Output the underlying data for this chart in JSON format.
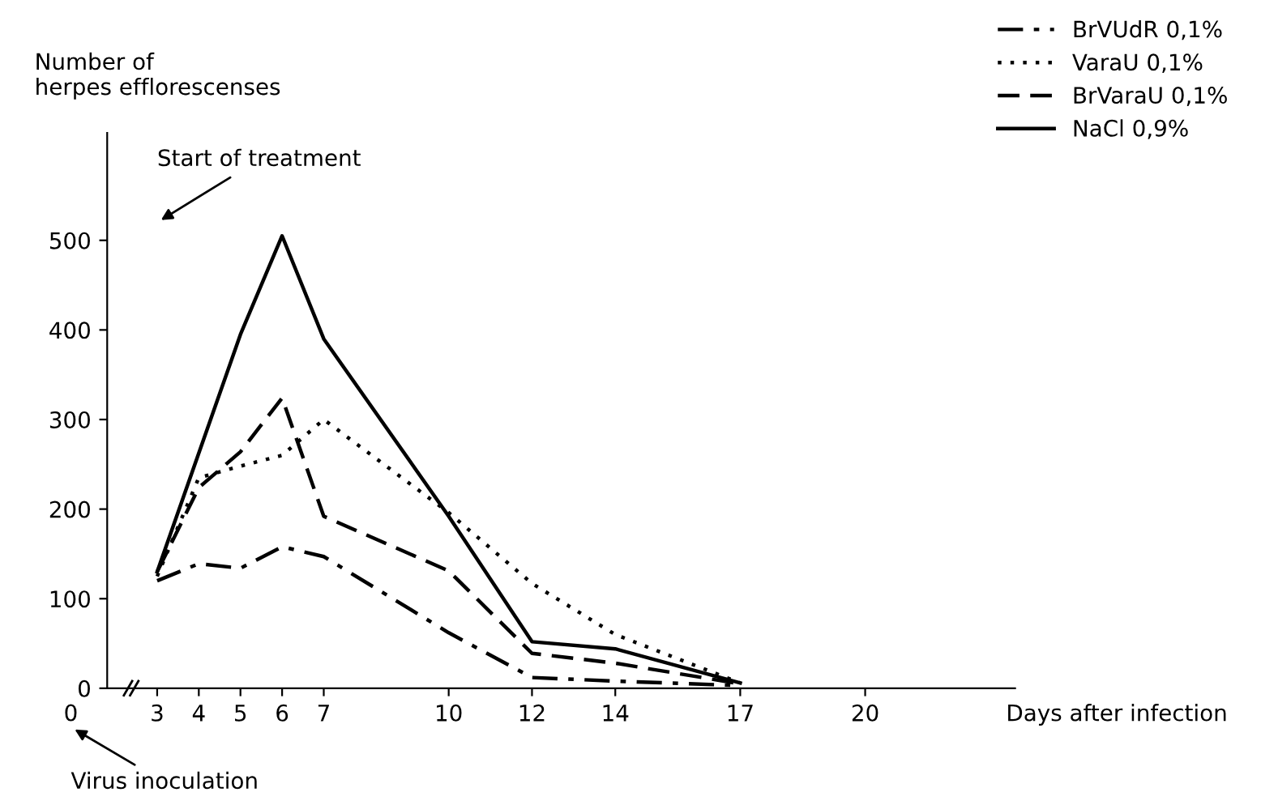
{
  "chart_data": {
    "type": "line",
    "ylabel": "Number of\nherpes efflorescenses",
    "xlabel": "Days after infection",
    "annotations": [
      "Start of treatment",
      "0",
      "Virus inoculation"
    ],
    "xlim": [
      1.8,
      23.6
    ],
    "xticks": [
      3,
      4,
      5,
      6,
      7,
      10,
      12,
      14,
      17,
      20
    ],
    "ylim": [
      0,
      620
    ],
    "yticks": [
      0,
      100,
      200,
      300,
      400,
      500
    ],
    "grid": false,
    "legend": "top right",
    "marker": "none",
    "series": [
      {
        "name": "BrVUdR 0,1%",
        "color": "#000000",
        "line_style": "dashdot",
        "x": [
          3,
          4,
          5,
          6,
          7,
          10,
          12,
          14,
          17
        ],
        "values": [
          120,
          139,
          134,
          158,
          147,
          62,
          12,
          8,
          3
        ]
      },
      {
        "name": "VaraU 0,1%",
        "color": "#000000",
        "line_style": "dotted",
        "x": [
          3,
          4,
          5,
          6,
          7,
          10,
          12,
          14,
          17
        ],
        "values": [
          125,
          235,
          248,
          260,
          300,
          196,
          117,
          60,
          6
        ]
      },
      {
        "name": "BrVaraU 0,1%",
        "color": "#000000",
        "line_style": "dashed",
        "x": [
          3,
          4,
          5,
          6,
          7,
          10,
          12,
          14,
          17
        ],
        "values": [
          130,
          224,
          264,
          324,
          192,
          131,
          39,
          28,
          5
        ]
      },
      {
        "name": "NaCl 0,9%",
        "color": "#000000",
        "line_style": "solid",
        "x": [
          3,
          5,
          6,
          7,
          10,
          12,
          14,
          17
        ],
        "values": [
          130,
          395,
          505,
          390,
          192,
          52,
          44,
          6
        ]
      }
    ]
  }
}
